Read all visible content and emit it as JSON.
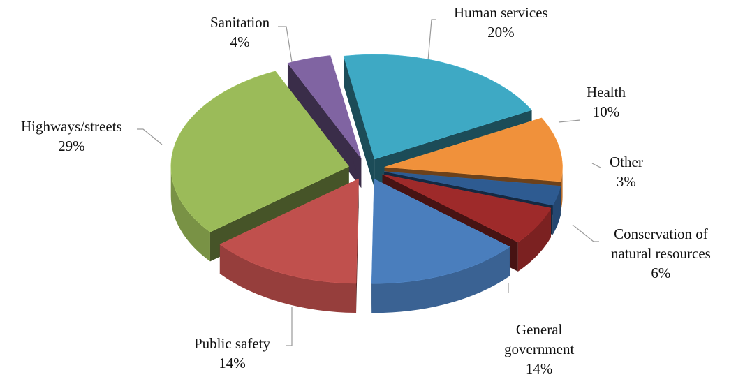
{
  "chart_data": {
    "type": "pie",
    "style": "3d-exploded",
    "title": "",
    "slices": [
      {
        "name": "Human services",
        "label_lines": [
          "Human services"
        ],
        "value": 20,
        "value_label": "20%",
        "color": "#3ea9c4"
      },
      {
        "name": "Health",
        "label_lines": [
          "Health"
        ],
        "value": 10,
        "value_label": "10%",
        "color": "#f0913b"
      },
      {
        "name": "Other",
        "label_lines": [
          "Other"
        ],
        "value": 3,
        "value_label": "3%",
        "color": "#2e5b91"
      },
      {
        "name": "Conservation of natural resources",
        "label_lines": [
          "Conservation of",
          "natural resources"
        ],
        "value": 6,
        "value_label": "6%",
        "color": "#9e2a2a"
      },
      {
        "name": "General government",
        "label_lines": [
          "General",
          "government"
        ],
        "value": 14,
        "value_label": "14%",
        "color": "#4a7ebd"
      },
      {
        "name": "Public safety",
        "label_lines": [
          "Public safety"
        ],
        "value": 14,
        "value_label": "14%",
        "color": "#c0504d"
      },
      {
        "name": "Highways/streets",
        "label_lines": [
          "Highways/streets"
        ],
        "value": 29,
        "value_label": "29%",
        "color": "#9bbb59"
      },
      {
        "name": "Sanitation",
        "label_lines": [
          "Sanitation"
        ],
        "value": 4,
        "value_label": "4%",
        "color": "#8064a2"
      }
    ]
  }
}
